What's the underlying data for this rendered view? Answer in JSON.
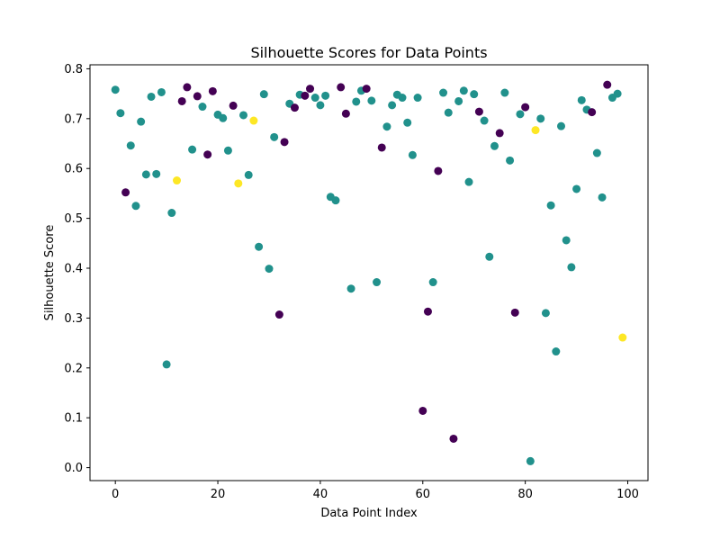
{
  "chart_data": {
    "type": "scatter",
    "title": "Silhouette Scores for Data Points",
    "xlabel": "Data Point Index",
    "ylabel": "Silhouette Score",
    "xlim": [
      -4.95,
      103.95
    ],
    "ylim": [
      -0.026,
      0.808
    ],
    "xticks": [
      0,
      20,
      40,
      60,
      80,
      100
    ],
    "yticks": [
      0.0,
      0.1,
      0.2,
      0.3,
      0.4,
      0.5,
      0.6,
      0.7,
      0.8
    ],
    "grid": false,
    "colors": {
      "0": "#440154",
      "1": "#21918c",
      "2": "#fde725"
    },
    "x": [
      0,
      1,
      2,
      3,
      4,
      5,
      6,
      7,
      8,
      9,
      10,
      11,
      12,
      13,
      14,
      15,
      16,
      17,
      18,
      19,
      20,
      21,
      22,
      23,
      24,
      25,
      26,
      27,
      28,
      29,
      30,
      31,
      32,
      33,
      34,
      35,
      36,
      37,
      38,
      39,
      40,
      41,
      42,
      43,
      44,
      45,
      46,
      47,
      48,
      49,
      50,
      51,
      52,
      53,
      54,
      55,
      56,
      57,
      58,
      59,
      60,
      61,
      62,
      63,
      64,
      65,
      66,
      67,
      68,
      69,
      70,
      71,
      72,
      73,
      74,
      75,
      76,
      77,
      78,
      79,
      80,
      81,
      82,
      83,
      84,
      85,
      86,
      87,
      88,
      89,
      90,
      91,
      92,
      93,
      94,
      95,
      96,
      97,
      98,
      99
    ],
    "y": [
      0.758,
      0.711,
      0.552,
      0.646,
      0.525,
      0.694,
      0.588,
      0.744,
      0.589,
      0.753,
      0.207,
      0.511,
      0.576,
      0.735,
      0.763,
      0.638,
      0.745,
      0.724,
      0.628,
      0.755,
      0.708,
      0.701,
      0.636,
      0.726,
      0.57,
      0.707,
      0.587,
      0.696,
      0.443,
      0.749,
      0.399,
      0.663,
      0.307,
      0.653,
      0.73,
      0.722,
      0.748,
      0.746,
      0.76,
      0.742,
      0.727,
      0.746,
      0.543,
      0.536,
      0.763,
      0.71,
      0.359,
      0.734,
      0.756,
      0.76,
      0.736,
      0.372,
      0.642,
      0.684,
      0.727,
      0.748,
      0.742,
      0.692,
      0.627,
      0.742,
      0.114,
      0.313,
      0.372,
      0.595,
      0.752,
      0.712,
      0.058,
      0.735,
      0.756,
      0.573,
      0.749,
      0.714,
      0.696,
      0.423,
      0.645,
      0.671,
      0.752,
      0.616,
      0.311,
      0.709,
      0.723,
      0.013,
      0.677,
      0.7,
      0.31,
      0.526,
      0.233,
      0.685,
      0.456,
      0.402,
      0.559,
      0.737,
      0.718,
      0.713,
      0.631,
      0.542,
      0.768,
      0.742,
      0.75,
      0.261
    ],
    "labels": [
      1,
      1,
      0,
      1,
      1,
      1,
      1,
      1,
      1,
      1,
      1,
      1,
      2,
      0,
      0,
      1,
      0,
      1,
      0,
      0,
      1,
      1,
      1,
      0,
      2,
      1,
      1,
      2,
      1,
      1,
      1,
      1,
      0,
      0,
      1,
      0,
      1,
      0,
      0,
      1,
      1,
      1,
      1,
      1,
      0,
      0,
      1,
      1,
      1,
      0,
      1,
      1,
      0,
      1,
      1,
      1,
      1,
      1,
      1,
      1,
      0,
      0,
      1,
      0,
      1,
      1,
      0,
      1,
      1,
      1,
      1,
      0,
      1,
      1,
      1,
      0,
      1,
      1,
      0,
      1,
      0,
      1,
      2,
      1,
      1,
      1,
      1,
      1,
      1,
      1,
      1,
      1,
      1,
      0,
      1,
      1,
      0,
      1,
      1,
      2
    ]
  }
}
